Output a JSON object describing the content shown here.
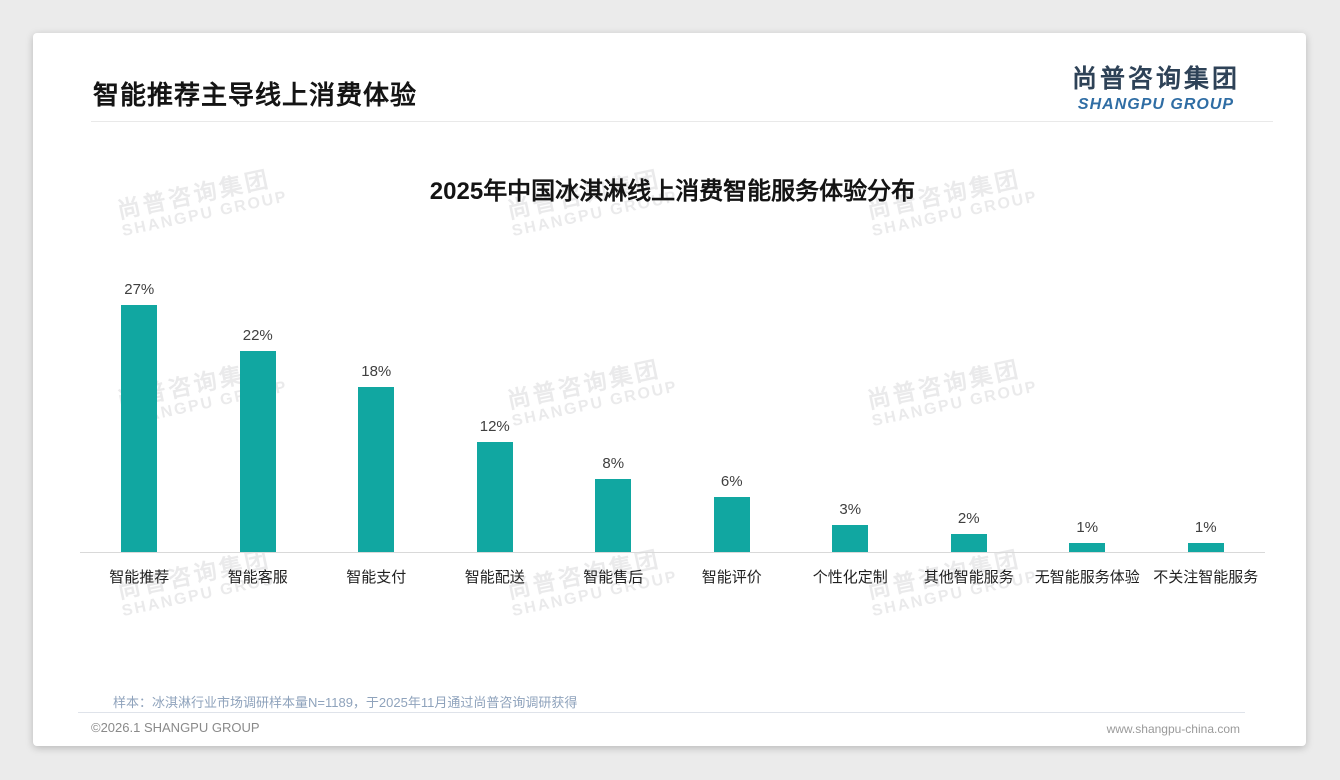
{
  "page": {
    "title": "智能推荐主导线上消费体验"
  },
  "logo": {
    "cn": "尚普咨询集团",
    "en": "SHANGPU GROUP"
  },
  "watermark": {
    "line1": "尚普咨询集团",
    "line2": "SHANGPU GROUP"
  },
  "chart_data": {
    "type": "bar",
    "title": "2025年中国冰淇淋线上消费智能服务体验分布",
    "categories": [
      "智能推荐",
      "智能客服",
      "智能支付",
      "智能配送",
      "智能售后",
      "智能评价",
      "个性化定制",
      "其他智能服务",
      "无智能服务体验",
      "不关注智能服务"
    ],
    "values": [
      27,
      22,
      18,
      12,
      8,
      6,
      3,
      2,
      1,
      1
    ],
    "unit": "%",
    "value_labels": [
      "27%",
      "22%",
      "18%",
      "12%",
      "8%",
      "6%",
      "3%",
      "2%",
      "1%",
      "1%"
    ],
    "xlabel": "",
    "ylabel": "",
    "ylim": [
      0,
      30
    ],
    "grid": false,
    "legend": false,
    "bar_color": "#11a7a1",
    "axis_line_color": "#d9d9d9"
  },
  "footnote": {
    "text": "样本：冰淇淋行业市场调研样本量N=1189，于2025年11月通过尚普咨询调研获得"
  },
  "footer": {
    "left": "©2026.1 SHANGPU GROUP",
    "right": "www.shangpu-china.com"
  },
  "colors": {
    "accent_teal": "#11a7a1",
    "logo_navy": "#2e4257",
    "logo_blue": "#2f6da4",
    "page_background": "#ebebeb",
    "card_background": "#ffffff"
  }
}
